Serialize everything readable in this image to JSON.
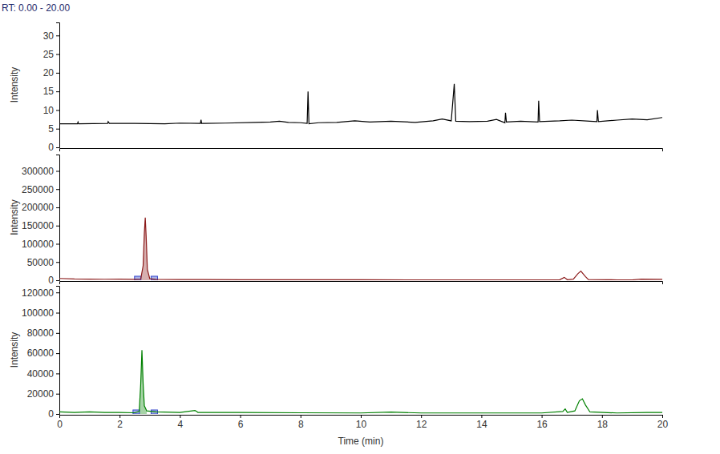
{
  "chart_data": [
    {
      "type": "line",
      "title": "RT: 0.00 - 20.00",
      "ylabel": "Intensity",
      "tick_labels": "y",
      "xlim": [
        0,
        20
      ],
      "ylim": [
        0,
        33.5
      ],
      "yticks": [
        0,
        5,
        10,
        15,
        20,
        25,
        30
      ],
      "x": [
        0,
        0.6,
        0.62,
        0.64,
        1.6,
        1.62,
        1.66,
        2.5,
        3.5,
        4.0,
        4.68,
        4.7,
        4.72,
        5.5,
        6.5,
        7.0,
        7.3,
        7.6,
        8.0,
        8.22,
        8.25,
        8.28,
        8.6,
        9.2,
        9.8,
        10.3,
        11.0,
        11.8,
        12.4,
        12.7,
        13.0,
        13.1,
        13.15,
        13.6,
        14.2,
        14.5,
        14.78,
        14.8,
        14.83,
        15.3,
        15.88,
        15.9,
        15.93,
        16.6,
        17.0,
        17.6,
        17.83,
        17.85,
        17.88,
        18.5,
        19.0,
        19.5,
        20.0
      ],
      "series": [
        {
          "color": "#000000",
          "values": [
            6.3,
            6.3,
            6.8,
            6.3,
            6.4,
            6.9,
            6.4,
            6.4,
            6.3,
            6.5,
            6.4,
            7.4,
            6.4,
            6.5,
            6.7,
            6.8,
            7.0,
            6.7,
            6.6,
            6.4,
            15.0,
            6.3,
            6.6,
            6.7,
            7.1,
            6.8,
            7.0,
            6.7,
            7.1,
            7.6,
            7.1,
            17.0,
            7.0,
            6.9,
            7.0,
            7.5,
            6.6,
            9.3,
            6.8,
            7.0,
            6.8,
            12.5,
            6.9,
            7.1,
            7.3,
            7.0,
            6.9,
            10.0,
            6.9,
            7.3,
            7.6,
            7.4,
            8.0
          ]
        }
      ]
    },
    {
      "type": "line",
      "ylabel": "Intensity",
      "tick_labels": "y",
      "xlim": [
        0,
        20
      ],
      "ylim": [
        0,
        345000
      ],
      "yticks": [
        0,
        50000,
        100000,
        150000,
        200000,
        250000,
        300000
      ],
      "peak_range": [
        2.6,
        3.15
      ],
      "x": [
        0,
        0.5,
        1.0,
        1.5,
        2.0,
        2.5,
        2.7,
        2.78,
        2.82,
        2.85,
        2.88,
        2.92,
        3.0,
        3.2,
        4.0,
        6.0,
        8.0,
        10.0,
        12.0,
        14.0,
        16.0,
        16.6,
        16.75,
        16.85,
        17.05,
        17.2,
        17.3,
        17.45,
        17.55,
        18.5,
        19.0,
        19.3,
        20.0
      ],
      "series": [
        {
          "color": "#8b1a1a",
          "values": [
            5000,
            3500,
            3000,
            2800,
            3000,
            2500,
            3000,
            40000,
            130000,
            172000,
            120000,
            30000,
            4000,
            2500,
            2000,
            1500,
            1500,
            1200,
            1000,
            1000,
            1000,
            1500,
            8000,
            1500,
            3000,
            18000,
            25000,
            10000,
            2000,
            1000,
            1000,
            3000,
            2500
          ]
        }
      ]
    },
    {
      "type": "line",
      "ylabel": "Intensity",
      "xlabel": "Time (min)",
      "xlim": [
        0,
        20
      ],
      "xticks": [
        0,
        2,
        4,
        6,
        8,
        10,
        12,
        14,
        16,
        18,
        20
      ],
      "ylim": [
        0,
        126500
      ],
      "yticks": [
        0,
        20000,
        40000,
        60000,
        80000,
        100000,
        120000
      ],
      "peak_range": [
        2.55,
        3.15
      ],
      "x": [
        0,
        0.5,
        1.0,
        1.5,
        2.0,
        2.5,
        2.65,
        2.7,
        2.74,
        2.78,
        2.82,
        2.9,
        3.2,
        4.0,
        4.5,
        4.6,
        6.0,
        8.0,
        10.0,
        11.0,
        12.0,
        14.0,
        16.0,
        16.7,
        16.78,
        16.85,
        17.1,
        17.25,
        17.35,
        17.45,
        17.6,
        18.5,
        19.5,
        20.0
      ],
      "series": [
        {
          "color": "#008000",
          "values": [
            2000,
            1500,
            2000,
            1500,
            1500,
            1200,
            2500,
            30000,
            63000,
            30000,
            8000,
            3000,
            2000,
            1500,
            3500,
            1500,
            1500,
            1200,
            1000,
            1800,
            1000,
            1000,
            1000,
            2500,
            5000,
            1500,
            3000,
            13000,
            15000,
            9000,
            2000,
            1000,
            1500,
            1500
          ]
        }
      ]
    }
  ]
}
